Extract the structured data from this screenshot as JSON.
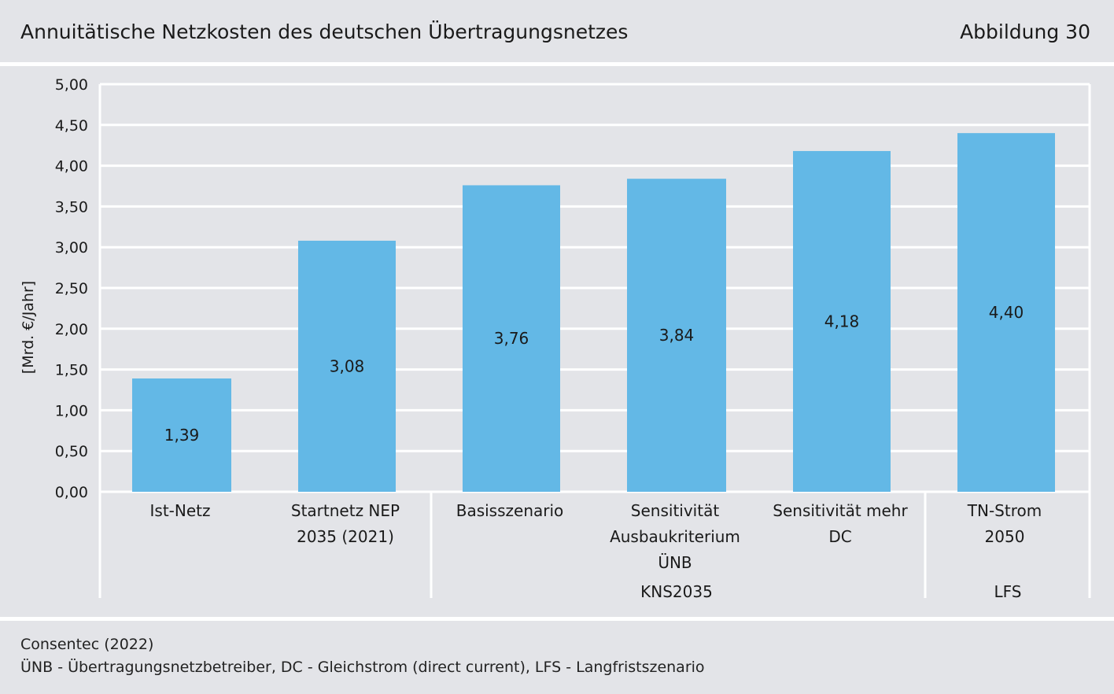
{
  "header": {
    "title": "Annuitätische Netzkosten des deutschen Übertragungsnetzes",
    "figure_label": "Abbildung 30"
  },
  "footer": {
    "source": "Consentec (2022)",
    "note": "ÜNB - Übertragungsnetzbetreiber, DC - Gleichstrom (direct current), LFS - Langfristszenario"
  },
  "colors": {
    "bar": "#63b8e6",
    "background": "#e3e4e8",
    "grid": "#ffffff"
  },
  "chart_data": {
    "type": "bar",
    "title": "Annuitätische Netzkosten des deutschen Übertragungsnetzes",
    "ylabel": "[Mrd. €/Jahr]",
    "ylim": [
      0,
      5
    ],
    "yticks": [
      "0,00",
      "0,50",
      "1,00",
      "1,50",
      "2,00",
      "2,50",
      "3,00",
      "3,50",
      "4,00",
      "4,50",
      "5,00"
    ],
    "grid": true,
    "categories": [
      [
        "Ist-Netz"
      ],
      [
        "Startnetz NEP",
        "2035 (2021)"
      ],
      [
        "Basisszenario"
      ],
      [
        "Sensitivität",
        "Ausbaukriterium",
        "ÜNB"
      ],
      [
        "Sensitivität mehr",
        "DC"
      ],
      [
        "TN-Strom",
        "2050"
      ]
    ],
    "values": [
      1.39,
      3.08,
      3.76,
      3.84,
      4.18,
      4.4
    ],
    "value_labels": [
      "1,39",
      "3,08",
      "3,76",
      "3,84",
      "4,18",
      "4,40"
    ],
    "groups": [
      {
        "label": "",
        "categories": [
          0,
          1
        ]
      },
      {
        "label": "KNS2035",
        "categories": [
          2,
          3,
          4
        ]
      },
      {
        "label": "LFS",
        "categories": [
          5
        ]
      }
    ]
  }
}
